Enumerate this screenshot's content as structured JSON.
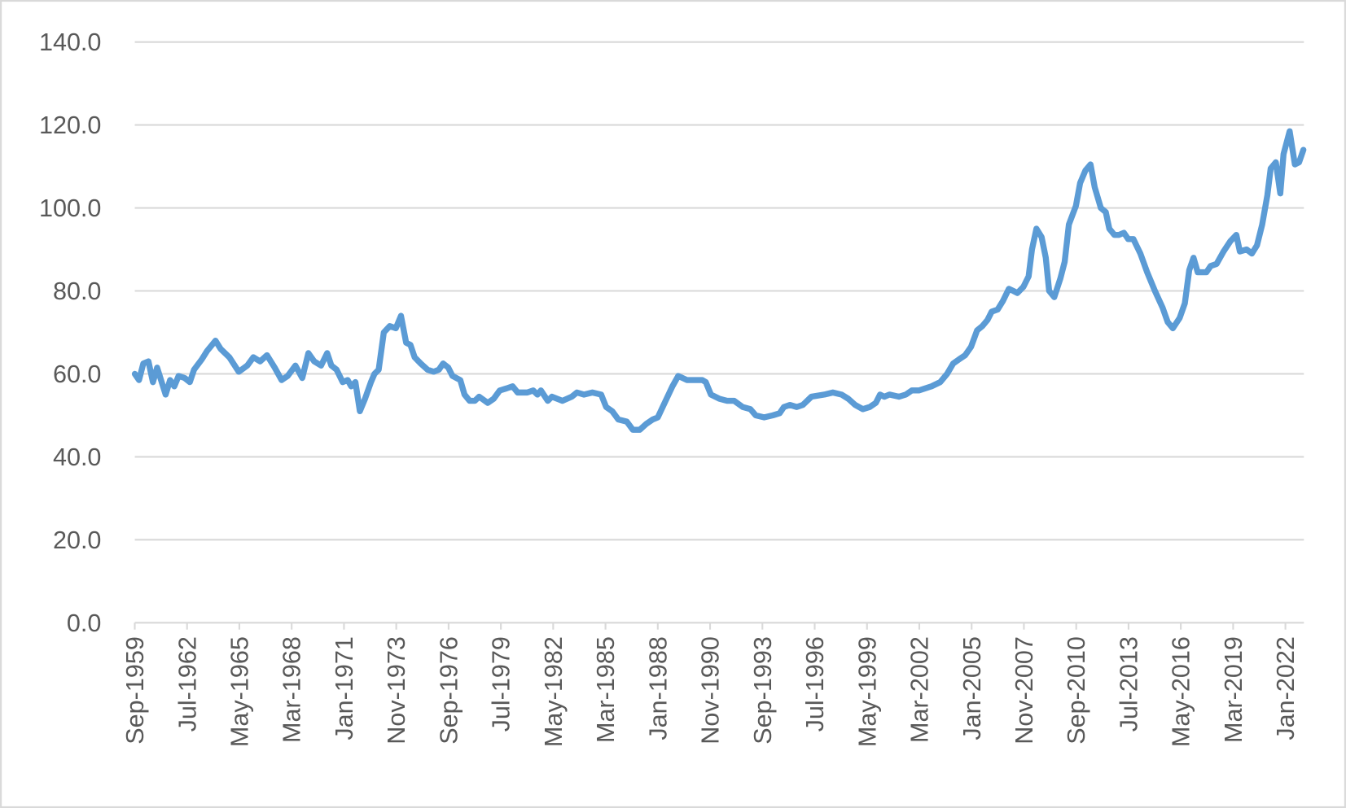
{
  "chart_data": {
    "type": "line",
    "x": [
      1959.67,
      1959.9,
      1960.13,
      1960.41,
      1960.65,
      1960.88,
      1961.34,
      1961.58,
      1961.81,
      1962.04,
      1962.37,
      1962.65,
      1962.88,
      1963.3,
      1963.58,
      1964.04,
      1964.32,
      1964.79,
      1965.3,
      1965.76,
      1966.09,
      1966.46,
      1966.83,
      1967.25,
      1967.62,
      1967.95,
      1968.37,
      1968.74,
      1969.07,
      1969.39,
      1969.76,
      1970.09,
      1970.32,
      1970.6,
      1970.93,
      1971.2,
      1971.39,
      1971.62,
      1971.86,
      1972.14,
      1972.46,
      1972.65,
      1972.88,
      1973.16,
      1973.48,
      1973.81,
      1974.09,
      1974.37,
      1974.6,
      1974.83,
      1975.16,
      1975.53,
      1975.86,
      1976.14,
      1976.37,
      1976.65,
      1976.88,
      1977.3,
      1977.53,
      1977.81,
      1978.09,
      1978.32,
      1978.79,
      1979.11,
      1979.44,
      1979.81,
      1980.14,
      1980.41,
      1980.93,
      1981.25,
      1981.48,
      1981.67,
      1982.04,
      1982.27,
      1982.83,
      1983.34,
      1983.62,
      1984.0,
      1984.46,
      1984.93,
      1985.2,
      1985.53,
      1985.86,
      1986.32,
      1986.65,
      1987.02,
      1987.39,
      1987.72,
      1988.0,
      1988.37,
      1988.79,
      1989.11,
      1989.58,
      1990.04,
      1990.41,
      1990.6,
      1990.88,
      1991.34,
      1991.76,
      1992.14,
      1992.6,
      1993.02,
      1993.3,
      1993.76,
      1994.23,
      1994.6,
      1994.83,
      1995.16,
      1995.53,
      1995.86,
      1996.32,
      1997.02,
      1997.48,
      1997.95,
      1998.32,
      1998.69,
      1999.11,
      1999.48,
      1999.81,
      2000.04,
      2000.27,
      2000.55,
      2001.07,
      2001.44,
      2001.76,
      2002.14,
      2002.83,
      2003.3,
      2003.67,
      2004.0,
      2004.32,
      2004.65,
      2004.97,
      2005.3,
      2005.58,
      2005.86,
      2006.09,
      2006.41,
      2006.69,
      2007.02,
      2007.25,
      2007.48,
      2007.81,
      2008.09,
      2008.27,
      2008.51,
      2008.79,
      2009.02,
      2009.2,
      2009.48,
      2009.81,
      2010.04,
      2010.27,
      2010.65,
      2010.88,
      2011.16,
      2011.44,
      2011.67,
      2012.0,
      2012.27,
      2012.46,
      2012.74,
      2012.97,
      2013.25,
      2013.48,
      2013.76,
      2014.14,
      2014.51,
      2014.93,
      2015.34,
      2015.62,
      2015.9,
      2016.27,
      2016.55,
      2016.79,
      2017.02,
      2017.25,
      2017.72,
      2017.95,
      2018.27,
      2018.65,
      2019.02,
      2019.34,
      2019.53,
      2019.9,
      2020.18,
      2020.46,
      2020.74,
      2021.02,
      2021.2,
      2021.48,
      2021.72,
      2021.9,
      2022.23,
      2022.51,
      2022.74,
      2022.97
    ],
    "series": [
      {
        "color": "#5b9bd5",
        "values": [
          60,
          58.5,
          62.5,
          63,
          58,
          61.5,
          55,
          58.5,
          57,
          59.5,
          59,
          58,
          61,
          63.5,
          65.5,
          68,
          66,
          64,
          60.5,
          62,
          64,
          63,
          64.5,
          61.5,
          58.5,
          59.5,
          62,
          59,
          65,
          63,
          62,
          65,
          62,
          61,
          58,
          58.5,
          57,
          58,
          51,
          54,
          58,
          60,
          61,
          70,
          71.5,
          71,
          74,
          67.5,
          67,
          64,
          62.5,
          61,
          60.5,
          61,
          62.5,
          61.5,
          59.5,
          58.5,
          55,
          53.5,
          53.5,
          54.5,
          53,
          54,
          56,
          56.5,
          57,
          55.5,
          55.5,
          56,
          55,
          56,
          53.5,
          54.5,
          53.5,
          54.5,
          55.5,
          55,
          55.5,
          55,
          52,
          51,
          49,
          48.5,
          46.5,
          46.5,
          48,
          49,
          49.5,
          53,
          57,
          59.5,
          58.5,
          58.5,
          58.5,
          58,
          55,
          54,
          53.5,
          53.5,
          52,
          51.5,
          50,
          49.5,
          50,
          50.5,
          52,
          52.5,
          52,
          52.5,
          54.5,
          55,
          55.5,
          55,
          54,
          52.5,
          51.5,
          52,
          53,
          55,
          54.5,
          55,
          54.5,
          55,
          56,
          56,
          57,
          58,
          60,
          62.5,
          63.5,
          64.5,
          66.5,
          70.5,
          71.5,
          73,
          75,
          75.5,
          77.5,
          80.5,
          80,
          79.5,
          81,
          83.5,
          90,
          95,
          93,
          88,
          80,
          78.5,
          83,
          87,
          96,
          100.5,
          106,
          109,
          110.5,
          105,
          100,
          99,
          95,
          93.5,
          93.5,
          94,
          92.5,
          92.5,
          89,
          84.5,
          80,
          76,
          72.5,
          71,
          73.5,
          77,
          85,
          88,
          84.5,
          84.5,
          86,
          86.5,
          89.5,
          92,
          93.5,
          89.5,
          90,
          89,
          91,
          96,
          103,
          109.5,
          111,
          103.5,
          113,
          118.5,
          110.5,
          111,
          114
        ]
      }
    ],
    "xlim": [
      1959.67,
      2023.0
    ],
    "xticks": [
      {
        "value": 1959.667,
        "label": "Sep-1959"
      },
      {
        "value": 1962.5,
        "label": "Jul-1962"
      },
      {
        "value": 1965.333,
        "label": "May-1965"
      },
      {
        "value": 1968.167,
        "label": "Mar-1968"
      },
      {
        "value": 1971.0,
        "label": "Jan-1971"
      },
      {
        "value": 1973.833,
        "label": "Nov-1973"
      },
      {
        "value": 1976.667,
        "label": "Sep-1976"
      },
      {
        "value": 1979.5,
        "label": "Jul-1979"
      },
      {
        "value": 1982.333,
        "label": "May-1982"
      },
      {
        "value": 1985.167,
        "label": "Mar-1985"
      },
      {
        "value": 1988.0,
        "label": "Jan-1988"
      },
      {
        "value": 1990.833,
        "label": "Nov-1990"
      },
      {
        "value": 1993.667,
        "label": "Sep-1993"
      },
      {
        "value": 1996.5,
        "label": "Jul-1996"
      },
      {
        "value": 1999.333,
        "label": "May-1999"
      },
      {
        "value": 2002.167,
        "label": "Mar-2002"
      },
      {
        "value": 2005.0,
        "label": "Jan-2005"
      },
      {
        "value": 2007.833,
        "label": "Nov-2007"
      },
      {
        "value": 2010.667,
        "label": "Sep-2010"
      },
      {
        "value": 2013.5,
        "label": "Jul-2013"
      },
      {
        "value": 2016.333,
        "label": "May-2016"
      },
      {
        "value": 2019.167,
        "label": "Mar-2019"
      },
      {
        "value": 2022.0,
        "label": "Jan-2022"
      }
    ],
    "ylim": [
      0,
      140
    ],
    "yticks": [
      {
        "value": 0,
        "label": "0.0"
      },
      {
        "value": 20,
        "label": "20.0"
      },
      {
        "value": 40,
        "label": "40.0"
      },
      {
        "value": 60,
        "label": "60.0"
      },
      {
        "value": 80,
        "label": "80.0"
      },
      {
        "value": 100,
        "label": "100.0"
      },
      {
        "value": 120,
        "label": "120.0"
      },
      {
        "value": 140,
        "label": "140.0"
      }
    ],
    "grid": true
  }
}
